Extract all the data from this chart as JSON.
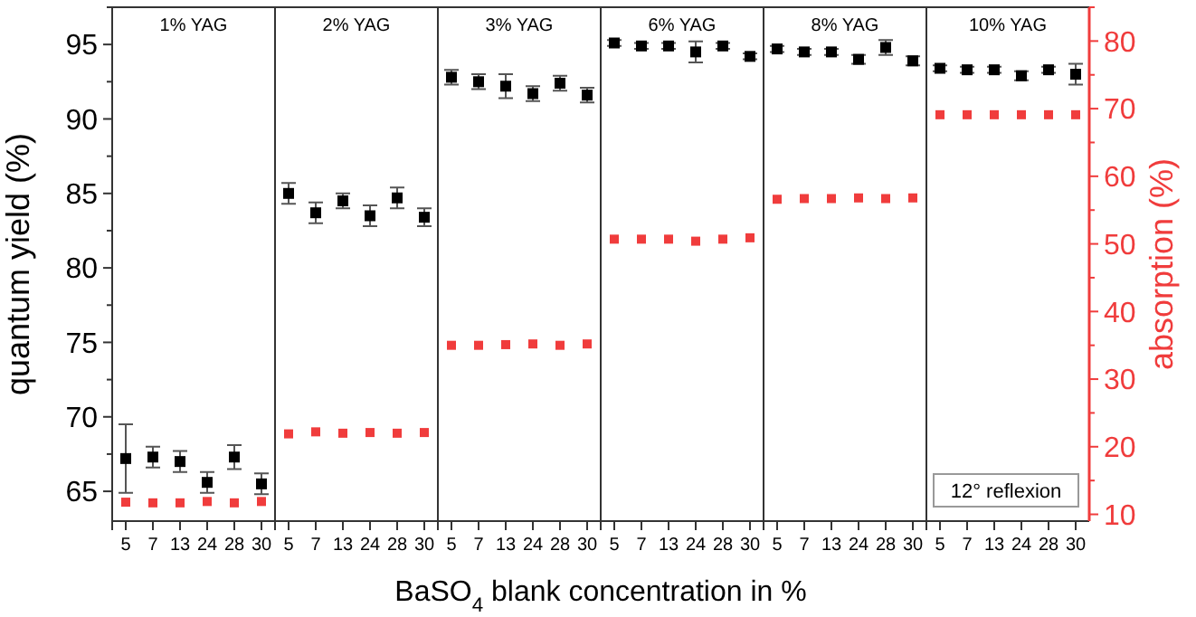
{
  "chart_data": [
    {
      "type": "scatter",
      "title": "1% YAG",
      "xlabel": "BaSO$_{4}$ blank concentration in %",
      "ylabel": "quantum yield (%)",
      "categories": [
        "5",
        "7",
        "13",
        "24",
        "28",
        "30"
      ],
      "marker": "square",
      "tick_labels": "xy",
      "ylim": [
        63,
        97.5
      ],
      "yticks": [
        65,
        {
          "value": 67.5,
          "label": null
        },
        70,
        {
          "value": 72.5,
          "label": null
        },
        75,
        {
          "value": 77.5,
          "label": null
        },
        80,
        {
          "value": 82.5,
          "label": null
        },
        85,
        {
          "value": 87.5,
          "label": null
        },
        90,
        {
          "value": 92.5,
          "label": null
        },
        95,
        {
          "value": 97.5,
          "label": null
        }
      ],
      "y2lim": [
        9,
        85
      ],
      "series": [
        {
          "color": "#000000",
          "values": [
            67.2,
            67.3,
            67.0,
            65.6,
            67.3,
            65.5
          ],
          "errors": [
            2.3,
            0.7,
            0.7,
            0.7,
            0.8,
            0.7
          ]
        },
        {
          "color": "#f03c3c",
          "axis": "y2",
          "values": [
            11.8,
            11.7,
            11.7,
            11.9,
            11.7,
            11.9
          ]
        }
      ]
    },
    {
      "type": "scatter",
      "title": "2% YAG",
      "categories": [
        "5",
        "7",
        "13",
        "24",
        "28",
        "30"
      ],
      "marker": "square",
      "tick_labels": "x",
      "ylim": [
        63,
        97.5
      ],
      "y2lim": [
        9,
        85
      ],
      "series": [
        {
          "color": "#000000",
          "values": [
            85.0,
            83.7,
            84.5,
            83.5,
            84.7,
            83.4
          ],
          "errors": [
            0.7,
            0.7,
            0.5,
            0.7,
            0.7,
            0.6
          ]
        },
        {
          "color": "#f03c3c",
          "axis": "y2",
          "values": [
            21.9,
            22.2,
            22.0,
            22.1,
            22.0,
            22.1
          ]
        }
      ]
    },
    {
      "type": "scatter",
      "title": "3% YAG",
      "categories": [
        "5",
        "7",
        "13",
        "24",
        "28",
        "30"
      ],
      "marker": "square",
      "tick_labels": "x",
      "ylim": [
        63,
        97.5
      ],
      "y2lim": [
        9,
        85
      ],
      "series": [
        {
          "color": "#000000",
          "values": [
            92.8,
            92.5,
            92.2,
            91.7,
            92.4,
            91.6
          ],
          "errors": [
            0.5,
            0.5,
            0.8,
            0.5,
            0.5,
            0.5
          ]
        },
        {
          "color": "#f03c3c",
          "axis": "y2",
          "values": [
            35.0,
            35.0,
            35.1,
            35.2,
            35.0,
            35.2
          ]
        }
      ]
    },
    {
      "type": "scatter",
      "title": "6% YAG",
      "categories": [
        "5",
        "7",
        "13",
        "24",
        "28",
        "30"
      ],
      "marker": "square",
      "tick_labels": "x",
      "ylim": [
        63,
        97.5
      ],
      "y2lim": [
        9,
        85
      ],
      "series": [
        {
          "color": "#000000",
          "values": [
            95.1,
            94.9,
            94.9,
            94.5,
            94.9,
            94.2
          ],
          "errors": [
            0.2,
            0.2,
            0.2,
            0.7,
            0.2,
            0.2
          ]
        },
        {
          "color": "#f03c3c",
          "axis": "y2",
          "values": [
            50.7,
            50.7,
            50.7,
            50.4,
            50.7,
            50.9
          ]
        }
      ]
    },
    {
      "type": "scatter",
      "title": "8% YAG",
      "categories": [
        "5",
        "7",
        "13",
        "24",
        "28",
        "30"
      ],
      "marker": "square",
      "tick_labels": "x",
      "ylim": [
        63,
        97.5
      ],
      "y2lim": [
        9,
        85
      ],
      "series": [
        {
          "color": "#000000",
          "values": [
            94.7,
            94.5,
            94.5,
            94.0,
            94.8,
            93.9
          ],
          "errors": [
            0.2,
            0.2,
            0.2,
            0.3,
            0.5,
            0.3
          ]
        },
        {
          "color": "#f03c3c",
          "axis": "y2",
          "values": [
            56.6,
            56.7,
            56.7,
            56.8,
            56.7,
            56.8
          ]
        }
      ]
    },
    {
      "type": "scatter",
      "title": "10% YAG",
      "y2label": "absorption (%)",
      "annotations": [
        "12° reflexion"
      ],
      "categories": [
        "5",
        "7",
        "13",
        "24",
        "28",
        "30"
      ],
      "marker": "square",
      "tick_labels": "xy2",
      "ylim": [
        63,
        97.5
      ],
      "y2lim": [
        9,
        85
      ],
      "y2ticks": [
        10,
        {
          "value": 15,
          "label": null
        },
        20,
        {
          "value": 25,
          "label": null
        },
        30,
        {
          "value": 35,
          "label": null
        },
        40,
        {
          "value": 45,
          "label": null
        },
        50,
        {
          "value": 55,
          "label": null
        },
        60,
        {
          "value": 65,
          "label": null
        },
        70,
        {
          "value": 75,
          "label": null
        },
        80,
        {
          "value": 85,
          "label": null
        }
      ],
      "series": [
        {
          "color": "#000000",
          "values": [
            93.4,
            93.3,
            93.3,
            92.9,
            93.3,
            93.0
          ],
          "errors": [
            0.2,
            0.2,
            0.2,
            0.3,
            0.2,
            0.7
          ]
        },
        {
          "color": "#f03c3c",
          "axis": "y2",
          "values": [
            69.1,
            69.1,
            69.1,
            69.1,
            69.1,
            69.1
          ]
        }
      ]
    }
  ]
}
